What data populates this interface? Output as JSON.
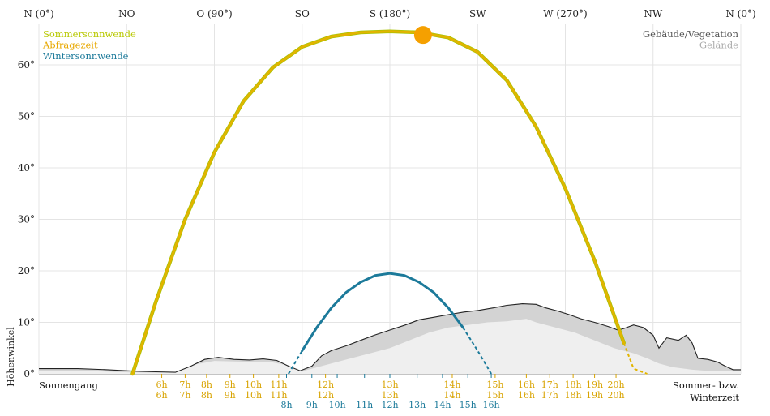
{
  "chart_data": {
    "type": "line",
    "x_axis": {
      "range_deg": [
        0,
        360
      ],
      "ticks": [
        {
          "deg": 0,
          "label": "N (0°)"
        },
        {
          "deg": 45,
          "label": "NO"
        },
        {
          "deg": 90,
          "label": "O (90°)"
        },
        {
          "deg": 135,
          "label": "SO"
        },
        {
          "deg": 180,
          "label": "S (180°)"
        },
        {
          "deg": 225,
          "label": "SW"
        },
        {
          "deg": 270,
          "label": "W (270°)"
        },
        {
          "deg": 315,
          "label": "NW"
        },
        {
          "deg": 360,
          "label": "N (0°)"
        }
      ]
    },
    "y_axis": {
      "label": "Höhenwinkel",
      "range": [
        0,
        66
      ],
      "ticks": [
        {
          "v": 0,
          "label": "0°"
        },
        {
          "v": 10,
          "label": "10°"
        },
        {
          "v": 20,
          "label": "20°"
        },
        {
          "v": 30,
          "label": "30°"
        },
        {
          "v": 40,
          "label": "40°"
        },
        {
          "v": 50,
          "label": "50°"
        },
        {
          "v": 60,
          "label": "60°"
        }
      ]
    },
    "grid": true,
    "legend": {
      "placement": "top-left",
      "entries": [
        {
          "name": "Sommersonnwende",
          "color": "#b8c800"
        },
        {
          "name": "Abfragezeit",
          "color": "#e8a800"
        },
        {
          "name": "Wintersonnwende",
          "color": "#1c7a9a"
        }
      ]
    },
    "legend_right": {
      "placement": "top-right",
      "entries": [
        {
          "name": "Gebäude/Vegetation",
          "color": "#555555"
        },
        {
          "name": "Gelände",
          "color": "#aaaaaa"
        }
      ]
    },
    "series": [
      {
        "name": "Sommersonnwende",
        "color": "#d8b800",
        "points": [
          [
            48,
            0
          ],
          [
            60,
            14
          ],
          [
            75,
            30
          ],
          [
            90,
            43
          ],
          [
            105,
            53
          ],
          [
            120,
            59.5
          ],
          [
            135,
            63.5
          ],
          [
            150,
            65.5
          ],
          [
            165,
            66.3
          ],
          [
            180,
            66.5
          ],
          [
            195,
            66.3
          ],
          [
            210,
            65.3
          ],
          [
            225,
            62.5
          ],
          [
            240,
            57
          ],
          [
            255,
            48
          ],
          [
            270,
            36
          ],
          [
            285,
            22
          ],
          [
            300,
            6
          ],
          [
            305,
            1
          ],
          [
            312,
            0
          ]
        ]
      },
      {
        "name": "Wintersonnwende",
        "color": "#1c7a9a",
        "points": [
          [
            128,
            0
          ],
          [
            135,
            4.5
          ],
          [
            142.5,
            9
          ],
          [
            150,
            12.8
          ],
          [
            157.5,
            15.8
          ],
          [
            165,
            17.8
          ],
          [
            172.5,
            19.1
          ],
          [
            180,
            19.5
          ],
          [
            187.5,
            19.1
          ],
          [
            195,
            17.8
          ],
          [
            202.5,
            15.8
          ],
          [
            210,
            12.8
          ],
          [
            217.5,
            9
          ],
          [
            225,
            4.5
          ],
          [
            232,
            0
          ]
        ]
      },
      {
        "name": "Abfragezeit",
        "color": "#f5a000",
        "points": [
          [
            197,
            65.8
          ]
        ]
      }
    ],
    "gelaende": [
      [
        0,
        0.5
      ],
      [
        30,
        0.5
      ],
      [
        45,
        0.3
      ],
      [
        60,
        0.2
      ],
      [
        70,
        0.3
      ],
      [
        80,
        1.8
      ],
      [
        90,
        2.5
      ],
      [
        100,
        2.4
      ],
      [
        110,
        2.3
      ],
      [
        120,
        2.2
      ],
      [
        128,
        1.6
      ],
      [
        135,
        0.5
      ],
      [
        140,
        1
      ],
      [
        150,
        2
      ],
      [
        160,
        3
      ],
      [
        170,
        4
      ],
      [
        180,
        5
      ],
      [
        190,
        6.5
      ],
      [
        200,
        8
      ],
      [
        210,
        9
      ],
      [
        220,
        9.5
      ],
      [
        230,
        10
      ],
      [
        240,
        10.2
      ],
      [
        250,
        10.7
      ],
      [
        255,
        10
      ],
      [
        265,
        9
      ],
      [
        275,
        8
      ],
      [
        285,
        6.5
      ],
      [
        295,
        5
      ],
      [
        305,
        4
      ],
      [
        312,
        3
      ],
      [
        318,
        2
      ],
      [
        325,
        1.3
      ],
      [
        335,
        0.8
      ],
      [
        345,
        0.5
      ],
      [
        360,
        0.5
      ]
    ],
    "gebaeude": [
      [
        0,
        1.0
      ],
      [
        20,
        1.0
      ],
      [
        35,
        0.8
      ],
      [
        50,
        0.5
      ],
      [
        60,
        0.4
      ],
      [
        70,
        0.3
      ],
      [
        78,
        1.5
      ],
      [
        85,
        2.8
      ],
      [
        92,
        3.2
      ],
      [
        100,
        2.8
      ],
      [
        108,
        2.7
      ],
      [
        115,
        2.9
      ],
      [
        122,
        2.6
      ],
      [
        128,
        1.5
      ],
      [
        134,
        0.6
      ],
      [
        140,
        1.5
      ],
      [
        145,
        3.5
      ],
      [
        150,
        4.5
      ],
      [
        158,
        5.5
      ],
      [
        165,
        6.5
      ],
      [
        172,
        7.5
      ],
      [
        180,
        8.5
      ],
      [
        188,
        9.5
      ],
      [
        195,
        10.5
      ],
      [
        203,
        11
      ],
      [
        210,
        11.5
      ],
      [
        218,
        12
      ],
      [
        225,
        12.3
      ],
      [
        233,
        12.8
      ],
      [
        240,
        13.3
      ],
      [
        248,
        13.6
      ],
      [
        255,
        13.5
      ],
      [
        260,
        12.8
      ],
      [
        266,
        12.2
      ],
      [
        272,
        11.5
      ],
      [
        278,
        10.7
      ],
      [
        285,
        10
      ],
      [
        292,
        9.2
      ],
      [
        297,
        8.5
      ],
      [
        300,
        8.8
      ],
      [
        305,
        9.5
      ],
      [
        310,
        9.0
      ],
      [
        315,
        7.5
      ],
      [
        318,
        5.0
      ],
      [
        322,
        7.0
      ],
      [
        328,
        6.5
      ],
      [
        332,
        7.5
      ],
      [
        335,
        6.0
      ],
      [
        338,
        3.0
      ],
      [
        343,
        2.8
      ],
      [
        348,
        2.3
      ],
      [
        352,
        1.5
      ],
      [
        356,
        0.8
      ],
      [
        360,
        0.8
      ]
    ],
    "annotations": {
      "left": "Sonnengang",
      "right_line1": "Sommer- bzw.",
      "right_line2": "Winterzeit"
    },
    "hour_labels_summer": [
      {
        "deg": 63,
        "label": "6h"
      },
      {
        "deg": 75,
        "label": "7h"
      },
      {
        "deg": 86,
        "label": "8h"
      },
      {
        "deg": 98,
        "label": "9h"
      },
      {
        "deg": 110,
        "label": "10h"
      },
      {
        "deg": 123,
        "label": "11h"
      },
      {
        "deg": 147,
        "label": "12h"
      },
      {
        "deg": 180,
        "label": "13h"
      },
      {
        "deg": 212,
        "label": "14h"
      },
      {
        "deg": 234,
        "label": "15h"
      },
      {
        "deg": 250,
        "label": "16h"
      },
      {
        "deg": 262,
        "label": "17h"
      },
      {
        "deg": 274,
        "label": "18h"
      },
      {
        "deg": 285,
        "label": "19h"
      },
      {
        "deg": 296,
        "label": "20h"
      }
    ],
    "hour_labels_query": [
      {
        "deg": 63,
        "label": "6h"
      },
      {
        "deg": 75,
        "label": "7h"
      },
      {
        "deg": 86,
        "label": "8h"
      },
      {
        "deg": 98,
        "label": "9h"
      },
      {
        "deg": 110,
        "label": "10h"
      },
      {
        "deg": 123,
        "label": "11h"
      },
      {
        "deg": 147,
        "label": "12h"
      },
      {
        "deg": 180,
        "label": "13h"
      },
      {
        "deg": 212,
        "label": "14h"
      },
      {
        "deg": 234,
        "label": "15h"
      },
      {
        "deg": 250,
        "label": "16h"
      },
      {
        "deg": 262,
        "label": "17h"
      },
      {
        "deg": 274,
        "label": "18h"
      },
      {
        "deg": 285,
        "label": "19h"
      },
      {
        "deg": 296,
        "label": "20h"
      }
    ],
    "hour_labels_winter": [
      {
        "deg": 127,
        "label": "8h"
      },
      {
        "deg": 140,
        "label": "9h"
      },
      {
        "deg": 153,
        "label": "10h"
      },
      {
        "deg": 167,
        "label": "11h"
      },
      {
        "deg": 180,
        "label": "12h"
      },
      {
        "deg": 194,
        "label": "13h"
      },
      {
        "deg": 207,
        "label": "14h"
      },
      {
        "deg": 220,
        "label": "15h"
      },
      {
        "deg": 232,
        "label": "16h"
      }
    ]
  }
}
